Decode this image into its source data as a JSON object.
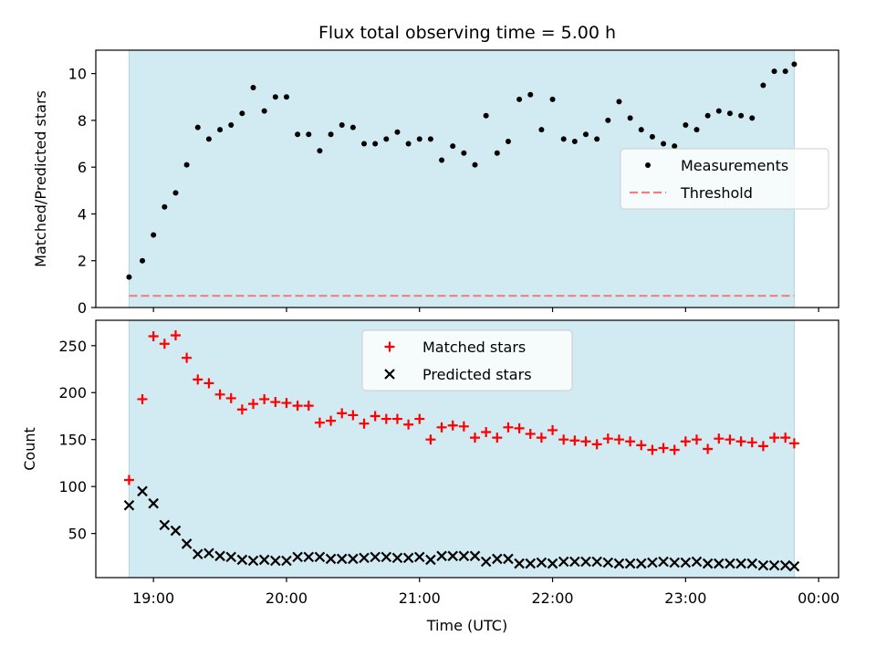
{
  "chart_data": {
    "title": "Flux total observing time = 5.00 h",
    "xlabel": "Time (UTC)",
    "x_tick_labels": [
      "19:00",
      "20:00",
      "21:00",
      "22:00",
      "23:00",
      "00:00"
    ],
    "x_range": [
      "18:34",
      "00:09"
    ],
    "shaded_interval": [
      "18:49",
      "23:49"
    ],
    "shade_color": "#add8e6",
    "panels": [
      {
        "type": "scatter",
        "ylabel": "Matched/Predicted stars",
        "ylim": [
          0,
          11
        ],
        "y_ticks": [
          "0",
          "2",
          "4",
          "6",
          "8",
          "10"
        ],
        "legend": {
          "placement": "center-right",
          "items": [
            "Measurements",
            "Threshold"
          ]
        },
        "threshold": {
          "name": "Threshold",
          "value": 0.5,
          "color": "#f08080",
          "style": "dashed"
        },
        "series": [
          {
            "name": "Measurements",
            "marker": "dot",
            "color": "#000000",
            "x": [
              "18:49",
              "18:55",
              "19:00",
              "19:05",
              "19:10",
              "19:15",
              "19:20",
              "19:25",
              "19:30",
              "19:35",
              "19:40",
              "19:45",
              "19:50",
              "19:55",
              "20:00",
              "20:05",
              "20:10",
              "20:15",
              "20:20",
              "20:25",
              "20:30",
              "20:35",
              "20:40",
              "20:45",
              "20:50",
              "20:55",
              "21:00",
              "21:05",
              "21:10",
              "21:15",
              "21:20",
              "21:25",
              "21:30",
              "21:35",
              "21:40",
              "21:45",
              "21:50",
              "21:55",
              "22:00",
              "22:05",
              "22:10",
              "22:15",
              "22:20",
              "22:25",
              "22:30",
              "22:35",
              "22:40",
              "22:45",
              "22:50",
              "22:55",
              "23:00",
              "23:05",
              "23:10",
              "23:15",
              "23:20",
              "23:25",
              "23:30",
              "23:35",
              "23:40",
              "23:45",
              "23:49"
            ],
            "values": [
              1.3,
              2.0,
              3.1,
              4.3,
              4.9,
              6.1,
              7.7,
              7.2,
              7.6,
              7.8,
              8.3,
              9.4,
              8.4,
              9.0,
              9.0,
              7.4,
              7.4,
              6.7,
              7.4,
              7.8,
              7.7,
              7.0,
              7.0,
              7.2,
              7.5,
              7.0,
              7.2,
              7.2,
              6.3,
              6.9,
              6.6,
              6.1,
              8.2,
              6.6,
              7.1,
              8.9,
              9.1,
              7.6,
              8.9,
              7.2,
              7.1,
              7.4,
              7.2,
              8.0,
              8.8,
              8.1,
              7.6,
              7.3,
              7.0,
              6.9,
              7.8,
              7.6,
              8.2,
              8.4,
              8.3,
              8.2,
              8.1,
              9.5,
              10.1,
              10.1,
              10.4
            ]
          }
        ]
      },
      {
        "type": "scatter",
        "ylabel": "Count",
        "ylim": [
          3,
          277
        ],
        "y_ticks": [
          "50",
          "100",
          "150",
          "200",
          "250"
        ],
        "legend": {
          "placement": "upper-center",
          "items": [
            "Matched stars",
            "Predicted stars"
          ]
        },
        "series": [
          {
            "name": "Matched stars",
            "marker": "plus",
            "color": "#ff0000",
            "x": [
              "18:49",
              "18:55",
              "19:00",
              "19:05",
              "19:10",
              "19:15",
              "19:20",
              "19:25",
              "19:30",
              "19:35",
              "19:40",
              "19:45",
              "19:50",
              "19:55",
              "20:00",
              "20:05",
              "20:10",
              "20:15",
              "20:20",
              "20:25",
              "20:30",
              "20:35",
              "20:40",
              "20:45",
              "20:50",
              "20:55",
              "21:00",
              "21:05",
              "21:10",
              "21:15",
              "21:20",
              "21:25",
              "21:30",
              "21:35",
              "21:40",
              "21:45",
              "21:50",
              "21:55",
              "22:00",
              "22:05",
              "22:10",
              "22:15",
              "22:20",
              "22:25",
              "22:30",
              "22:35",
              "22:40",
              "22:45",
              "22:50",
              "22:55",
              "23:00",
              "23:05",
              "23:10",
              "23:15",
              "23:20",
              "23:25",
              "23:30",
              "23:35",
              "23:40",
              "23:45",
              "23:49"
            ],
            "values": [
              107,
              193,
              260,
              252,
              261,
              237,
              214,
              210,
              198,
              194,
              182,
              188,
              193,
              190,
              189,
              186,
              186,
              168,
              170,
              178,
              176,
              167,
              175,
              172,
              172,
              166,
              172,
              150,
              163,
              165,
              164,
              152,
              158,
              152,
              163,
              162,
              156,
              152,
              160,
              150,
              149,
              148,
              145,
              151,
              150,
              148,
              144,
              139,
              141,
              139,
              148,
              150,
              140,
              151,
              150,
              148,
              147,
              143,
              152,
              152,
              146
            ]
          },
          {
            "name": "Predicted stars",
            "marker": "x",
            "color": "#000000",
            "x": [
              "18:49",
              "18:55",
              "19:00",
              "19:05",
              "19:10",
              "19:15",
              "19:20",
              "19:25",
              "19:30",
              "19:35",
              "19:40",
              "19:45",
              "19:50",
              "19:55",
              "20:00",
              "20:05",
              "20:10",
              "20:15",
              "20:20",
              "20:25",
              "20:30",
              "20:35",
              "20:40",
              "20:45",
              "20:50",
              "20:55",
              "21:00",
              "21:05",
              "21:10",
              "21:15",
              "21:20",
              "21:25",
              "21:30",
              "21:35",
              "21:40",
              "21:45",
              "21:50",
              "21:55",
              "22:00",
              "22:05",
              "22:10",
              "22:15",
              "22:20",
              "22:25",
              "22:30",
              "22:35",
              "22:40",
              "22:45",
              "22:50",
              "22:55",
              "23:00",
              "23:05",
              "23:10",
              "23:15",
              "23:20",
              "23:25",
              "23:30",
              "23:35",
              "23:40",
              "23:45",
              "23:49"
            ],
            "values": [
              80,
              95,
              82,
              59,
              53,
              39,
              28,
              29,
              26,
              25,
              22,
              21,
              22,
              21,
              21,
              25,
              25,
              25,
              23,
              23,
              23,
              24,
              25,
              25,
              24,
              24,
              25,
              22,
              26,
              26,
              26,
              26,
              20,
              23,
              23,
              18,
              18,
              19,
              18,
              20,
              20,
              20,
              20,
              19,
              18,
              18,
              18,
              19,
              20,
              19,
              19,
              20,
              18,
              18,
              18,
              18,
              18,
              16,
              16,
              16,
              15
            ]
          }
        ]
      }
    ]
  }
}
